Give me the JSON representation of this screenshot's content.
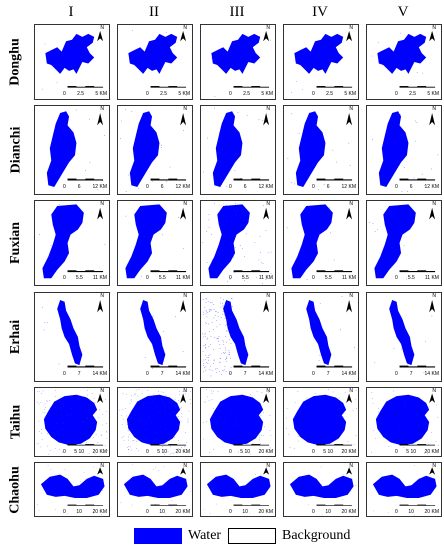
{
  "columns": [
    "I",
    "II",
    "III",
    "IV",
    "V"
  ],
  "rows": [
    {
      "id": "donghu",
      "label": "Donghu",
      "scale": [
        "0",
        "2.5",
        "5 KM"
      ]
    },
    {
      "id": "dianchi",
      "label": "Dianchi",
      "scale": [
        "0",
        "6",
        "12 KM"
      ]
    },
    {
      "id": "fuxian",
      "label": "Fuxian",
      "scale": [
        "0",
        "5.5",
        "11 KM"
      ]
    },
    {
      "id": "erhai",
      "label": "Erhai",
      "scale": [
        "0",
        "7",
        "14 KM"
      ]
    },
    {
      "id": "taihu",
      "label": "Taihu",
      "scale": [
        "0",
        "5 10",
        "20 KM"
      ]
    },
    {
      "id": "chaohu",
      "label": "Chaohu",
      "scale": [
        "0",
        "10",
        "20 KM"
      ]
    }
  ],
  "north_label": "N",
  "legend": {
    "water": "Water",
    "background": "Background"
  },
  "colors": {
    "water": "#0000ff",
    "background": "#ffffff",
    "noise": "#2a2aff"
  }
}
